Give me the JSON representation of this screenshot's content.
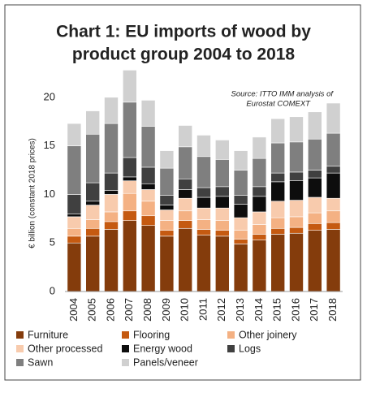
{
  "chart_data": {
    "type": "stacked_bar",
    "title": [
      "Chart 1: EU imports of wood by",
      "product group 2004 to 2018"
    ],
    "source": [
      "Source: ITTO IMM analysis of",
      "Eurostat COMEXT"
    ],
    "ylabel": "€ billion (constant 2018 prices)",
    "categories": [
      "2004",
      "2005",
      "2006",
      "2007",
      "2008",
      "2009",
      "2010",
      "2011",
      "2012",
      "2013",
      "2014",
      "2015",
      "2016",
      "2017",
      "2018"
    ],
    "series": [
      {
        "name": "Furniture",
        "color": "#843c0c",
        "values": [
          5.0,
          5.7,
          6.4,
          7.3,
          6.8,
          5.7,
          6.5,
          5.8,
          5.7,
          4.9,
          5.3,
          5.9,
          6.0,
          6.3,
          6.4
        ]
      },
      {
        "name": "Flooring",
        "color": "#c55a11",
        "values": [
          0.7,
          0.8,
          0.8,
          1.0,
          1.0,
          0.6,
          0.8,
          0.6,
          0.6,
          0.5,
          0.6,
          0.6,
          0.6,
          0.7,
          0.7
        ]
      },
      {
        "name": "Other joinery",
        "color": "#f4b183",
        "values": [
          0.8,
          0.9,
          1.0,
          1.8,
          1.5,
          1.0,
          1.0,
          1.0,
          1.0,
          0.9,
          1.0,
          1.1,
          1.1,
          1.1,
          1.2
        ]
      },
      {
        "name": "Other processed",
        "color": "#f8cbad",
        "values": [
          1.2,
          1.5,
          1.8,
          1.3,
          1.2,
          1.1,
          1.3,
          1.2,
          1.3,
          1.3,
          1.3,
          1.7,
          1.7,
          1.6,
          1.3
        ]
      },
      {
        "name": "Energy wood",
        "color": "#0d0d0d",
        "values": [
          0.3,
          0.4,
          0.4,
          0.4,
          0.6,
          0.5,
          0.9,
          1.1,
          1.2,
          1.4,
          1.6,
          2.0,
          2.0,
          2.0,
          2.6
        ]
      },
      {
        "name": "Logs",
        "color": "#404040",
        "values": [
          2.0,
          1.9,
          1.8,
          2.0,
          1.7,
          1.0,
          1.1,
          1.0,
          1.0,
          0.9,
          1.0,
          0.9,
          0.9,
          0.8,
          0.7
        ]
      },
      {
        "name": "Sawn",
        "color": "#7f7f7f",
        "values": [
          5.0,
          5.0,
          5.1,
          5.7,
          4.2,
          2.8,
          3.3,
          3.2,
          2.8,
          2.6,
          2.9,
          3.1,
          3.1,
          3.2,
          3.4
        ]
      },
      {
        "name": "Panels/veneer",
        "color": "#d0d0d0",
        "values": [
          2.3,
          2.4,
          2.7,
          3.3,
          2.7,
          1.8,
          2.2,
          2.2,
          2.0,
          2.0,
          2.2,
          2.5,
          2.6,
          2.8,
          3.1
        ]
      }
    ],
    "ylim": [
      0,
      24
    ],
    "yticks": [
      0,
      5,
      10,
      15,
      20
    ],
    "grid": false
  }
}
